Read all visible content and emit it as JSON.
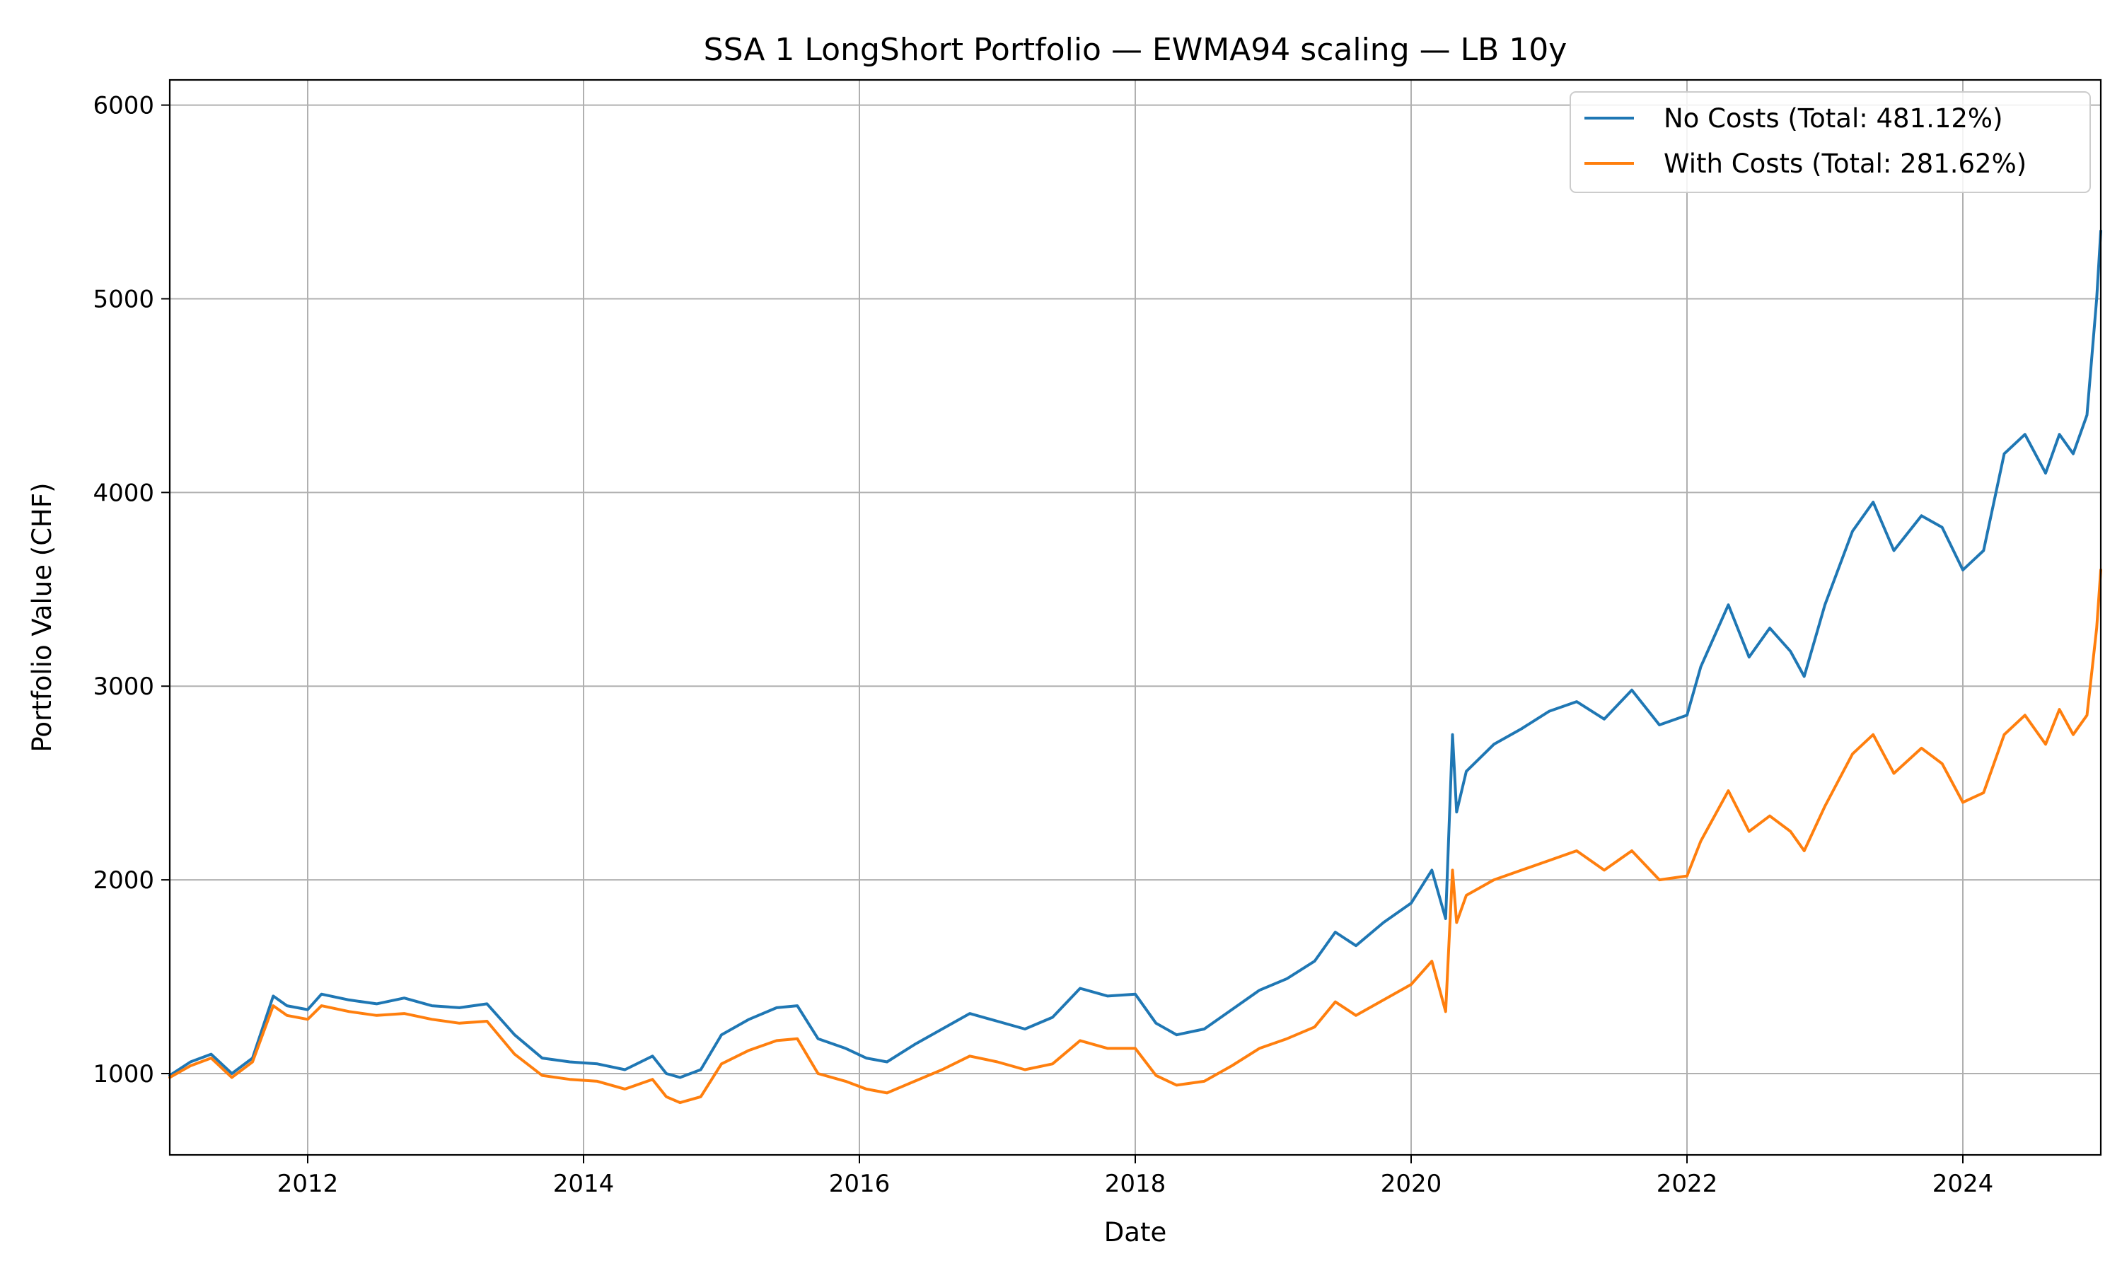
{
  "chart_data": {
    "type": "line",
    "title": "SSA 1 LongShort Portfolio — EWMA94 scaling — LB 10y",
    "xlabel": "Date",
    "ylabel": "Portfolio Value (CHF)",
    "xlim": [
      2011.0,
      2025.0
    ],
    "ylim": [
      580,
      6130
    ],
    "x_ticks": [
      2012,
      2014,
      2016,
      2018,
      2020,
      2022,
      2024
    ],
    "x_tick_labels": [
      "2012",
      "2014",
      "2016",
      "2018",
      "2020",
      "2022",
      "2024"
    ],
    "y_ticks": [
      1000,
      2000,
      3000,
      4000,
      5000,
      6000
    ],
    "y_tick_labels": [
      "1000",
      "2000",
      "3000",
      "4000",
      "5000",
      "6000"
    ],
    "grid": true,
    "legend_position": "top-right",
    "series": [
      {
        "name": "No Costs (Total: 481.12%)",
        "color": "#1f77b4",
        "x": [
          2011.0,
          2011.15,
          2011.3,
          2011.45,
          2011.6,
          2011.75,
          2011.85,
          2012.0,
          2012.1,
          2012.3,
          2012.5,
          2012.7,
          2012.9,
          2013.1,
          2013.3,
          2013.5,
          2013.7,
          2013.9,
          2014.1,
          2014.3,
          2014.5,
          2014.6,
          2014.7,
          2014.85,
          2015.0,
          2015.2,
          2015.4,
          2015.55,
          2015.7,
          2015.9,
          2016.05,
          2016.2,
          2016.4,
          2016.6,
          2016.8,
          2017.0,
          2017.2,
          2017.4,
          2017.6,
          2017.8,
          2018.0,
          2018.15,
          2018.3,
          2018.5,
          2018.7,
          2018.9,
          2019.1,
          2019.3,
          2019.45,
          2019.6,
          2019.8,
          2020.0,
          2020.15,
          2020.25,
          2020.3,
          2020.33,
          2020.4,
          2020.6,
          2020.8,
          2021.0,
          2021.2,
          2021.4,
          2021.6,
          2021.8,
          2022.0,
          2022.1,
          2022.3,
          2022.45,
          2022.6,
          2022.75,
          2022.85,
          2023.0,
          2023.2,
          2023.35,
          2023.5,
          2023.7,
          2023.85,
          2024.0,
          2024.15,
          2024.3,
          2024.45,
          2024.6,
          2024.7,
          2024.8,
          2024.9,
          2024.97,
          2025.0
        ],
        "values": [
          990,
          1060,
          1100,
          1000,
          1080,
          1400,
          1350,
          1330,
          1410,
          1380,
          1360,
          1390,
          1350,
          1340,
          1360,
          1200,
          1080,
          1060,
          1050,
          1020,
          1090,
          1000,
          980,
          1020,
          1200,
          1280,
          1340,
          1350,
          1180,
          1130,
          1080,
          1060,
          1150,
          1230,
          1310,
          1270,
          1230,
          1290,
          1440,
          1400,
          1410,
          1260,
          1200,
          1230,
          1330,
          1430,
          1490,
          1580,
          1730,
          1660,
          1780,
          1880,
          2050,
          1800,
          2750,
          2350,
          2560,
          2700,
          2780,
          2870,
          2920,
          2830,
          2980,
          2800,
          2850,
          3100,
          3420,
          3150,
          3300,
          3180,
          3050,
          3420,
          3800,
          3950,
          3700,
          3880,
          3820,
          3600,
          3700,
          4200,
          4300,
          4100,
          4300,
          4200,
          4400,
          5000,
          5350
        ]
      },
      {
        "name": "With Costs (Total: 281.62%)",
        "color": "#ff7f0e",
        "x": [
          2011.0,
          2011.15,
          2011.3,
          2011.45,
          2011.6,
          2011.75,
          2011.85,
          2012.0,
          2012.1,
          2012.3,
          2012.5,
          2012.7,
          2012.9,
          2013.1,
          2013.3,
          2013.5,
          2013.7,
          2013.9,
          2014.1,
          2014.3,
          2014.5,
          2014.6,
          2014.7,
          2014.85,
          2015.0,
          2015.2,
          2015.4,
          2015.55,
          2015.7,
          2015.9,
          2016.05,
          2016.2,
          2016.4,
          2016.6,
          2016.8,
          2017.0,
          2017.2,
          2017.4,
          2017.6,
          2017.8,
          2018.0,
          2018.15,
          2018.3,
          2018.5,
          2018.7,
          2018.9,
          2019.1,
          2019.3,
          2019.45,
          2019.6,
          2019.8,
          2020.0,
          2020.15,
          2020.25,
          2020.3,
          2020.33,
          2020.4,
          2020.6,
          2020.8,
          2021.0,
          2021.2,
          2021.4,
          2021.6,
          2021.8,
          2022.0,
          2022.1,
          2022.3,
          2022.45,
          2022.6,
          2022.75,
          2022.85,
          2023.0,
          2023.2,
          2023.35,
          2023.5,
          2023.7,
          2023.85,
          2024.0,
          2024.15,
          2024.3,
          2024.45,
          2024.6,
          2024.7,
          2024.8,
          2024.9,
          2024.97,
          2025.0
        ],
        "values": [
          980,
          1040,
          1080,
          980,
          1060,
          1350,
          1300,
          1280,
          1350,
          1320,
          1300,
          1310,
          1280,
          1260,
          1270,
          1100,
          990,
          970,
          960,
          920,
          970,
          880,
          850,
          880,
          1050,
          1120,
          1170,
          1180,
          1000,
          960,
          920,
          900,
          960,
          1020,
          1090,
          1060,
          1020,
          1050,
          1170,
          1130,
          1130,
          990,
          940,
          960,
          1040,
          1130,
          1180,
          1240,
          1370,
          1300,
          1380,
          1460,
          1580,
          1320,
          2050,
          1780,
          1920,
          2000,
          2050,
          2100,
          2150,
          2050,
          2150,
          2000,
          2020,
          2200,
          2460,
          2250,
          2330,
          2250,
          2150,
          2380,
          2650,
          2750,
          2550,
          2680,
          2600,
          2400,
          2450,
          2750,
          2850,
          2700,
          2880,
          2750,
          2850,
          3300,
          3600
        ]
      }
    ]
  }
}
